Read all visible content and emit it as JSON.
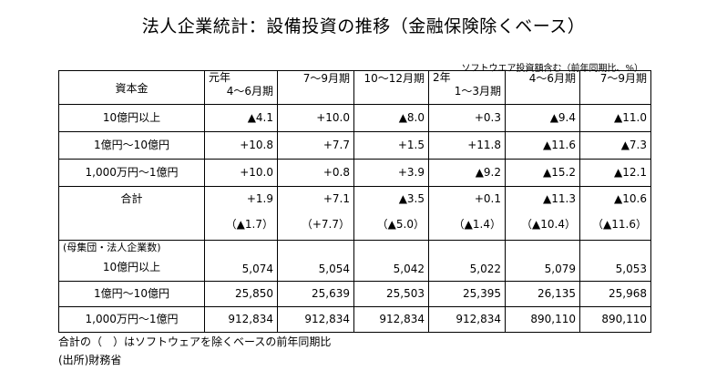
{
  "title": "法人企業統計：設備投資の推移（金融保険除くベース）",
  "unit_note": "ソフトウエア投資額含む（前年同期比、%）",
  "header": {
    "col0": "資本金",
    "periods": [
      {
        "era": "元年",
        "label": "4～6月期"
      },
      {
        "era": "",
        "label": "7～9月期"
      },
      {
        "era": "",
        "label": "10～12月期"
      },
      {
        "era": "2年",
        "label": "1～3月期"
      },
      {
        "era": "",
        "label": "4～6月期"
      },
      {
        "era": "",
        "label": "7～9月期"
      }
    ]
  },
  "growth_rows": [
    {
      "label": "10億円以上",
      "values": [
        "▲4.1",
        "+10.0",
        "▲8.0",
        "+0.3",
        "▲9.4",
        "▲11.0"
      ]
    },
    {
      "label": "1億円～10億円",
      "values": [
        "+10.8",
        "+7.7",
        "+1.5",
        "+11.8",
        "▲11.6",
        "▲7.3"
      ]
    },
    {
      "label": "1,000万円～1億円",
      "values": [
        "+10.0",
        "+0.8",
        "+3.9",
        "▲9.2",
        "▲15.2",
        "▲12.1"
      ]
    }
  ],
  "total_row": {
    "label": "合計",
    "values": [
      "+1.9",
      "+7.1",
      "▲3.5",
      "+0.1",
      "▲11.3",
      "▲10.6"
    ],
    "excl_software": [
      "（▲1.7）",
      "（+7.7）",
      "（▲5.0）",
      "（▲1.4）",
      "（▲10.4）",
      "（▲11.6）"
    ]
  },
  "count_caption": "(母集団・法人企業数)",
  "count_rows": [
    {
      "label": "10億円以上",
      "values": [
        "5,074",
        "5,054",
        "5,042",
        "5,022",
        "5,079",
        "5,053"
      ]
    },
    {
      "label": "1億円～10億円",
      "values": [
        "25,850",
        "25,639",
        "25,503",
        "25,395",
        "26,135",
        "25,968"
      ]
    },
    {
      "label": "1,000万円～1億円",
      "values": [
        "912,834",
        "912,834",
        "912,834",
        "912,834",
        "890,110",
        "890,110"
      ]
    }
  ],
  "footnotes": [
    "合計の（　）はソフトウェアを除くベースの前年同期比",
    "(出所)財務省"
  ]
}
